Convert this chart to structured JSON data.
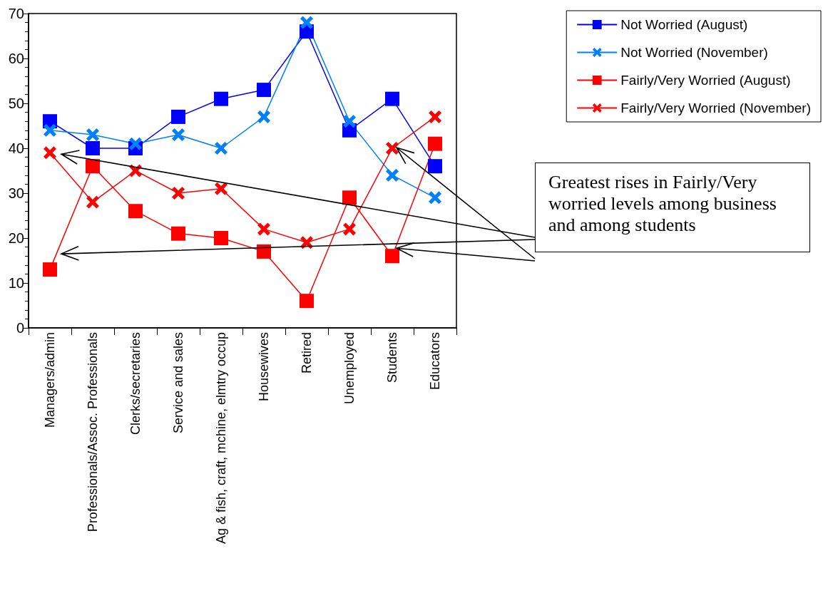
{
  "chart_data": {
    "type": "line",
    "categories": [
      "Managers/admin",
      "Professionals/Assoc. Professionals",
      "Clerks/secretaries",
      "Service and sales",
      "Ag & fish, craft, mchine, elmtry occup",
      "Housewives",
      "Retired",
      "Unemployed",
      "Students",
      "Educators"
    ],
    "series": [
      {
        "name": "Not Worried (August)",
        "color": "#0000ff",
        "marker": "square",
        "values": [
          46,
          40,
          40,
          47,
          51,
          53,
          66,
          44,
          51,
          36
        ]
      },
      {
        "name": "Not Worried (November)",
        "color": "#0080ff",
        "marker": "cross",
        "values": [
          44,
          43,
          41,
          43,
          40,
          47,
          68,
          46,
          34,
          29
        ]
      },
      {
        "name": "Fairly/Very Worried (August)",
        "color": "#ff0000",
        "marker": "square",
        "values": [
          13,
          36,
          26,
          21,
          20,
          17,
          6,
          29,
          16,
          41
        ]
      },
      {
        "name": "Fairly/Very Worried (November)",
        "color": "#ff0000",
        "marker": "cross",
        "values": [
          39,
          28,
          35,
          30,
          31,
          22,
          19,
          22,
          40,
          47
        ]
      }
    ],
    "ylim": [
      0,
      70
    ],
    "yticks": [
      0,
      10,
      20,
      30,
      40,
      50,
      60,
      70
    ],
    "grid": false,
    "legend": "top right",
    "line_style": "solid",
    "annotations": [
      "Greatest rises in Fairly/Very worried levels among business and among students"
    ]
  }
}
